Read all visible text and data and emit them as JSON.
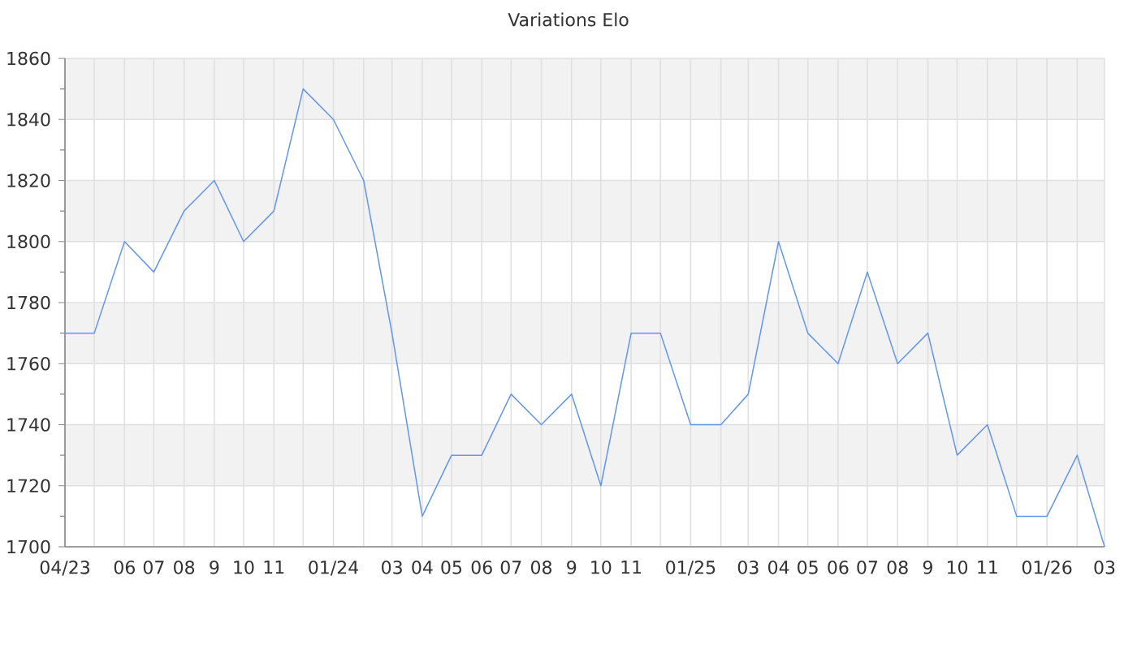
{
  "chart_data": {
    "type": "line",
    "title": "Variations Elo",
    "x": [
      "2023-04",
      "2023-05",
      "2023-06",
      "2023-07",
      "2023-08",
      "2023-09",
      "2023-10",
      "2023-11",
      "2023-12",
      "2024-01",
      "2024-02",
      "2024-03",
      "2024-04",
      "2024-05",
      "2024-06",
      "2024-07",
      "2024-08",
      "2024-09",
      "2024-10",
      "2024-11",
      "2024-12",
      "2025-01",
      "2025-02",
      "2025-03",
      "2025-04",
      "2025-05",
      "2025-06",
      "2025-07",
      "2025-08",
      "2025-09",
      "2025-10",
      "2025-11",
      "2025-12",
      "2026-01",
      "2026-02",
      "2026-03"
    ],
    "values": [
      1770,
      1770,
      1800,
      1790,
      1810,
      1820,
      1800,
      1810,
      1850,
      1840,
      1820,
      1770,
      1710,
      1730,
      1730,
      1750,
      1740,
      1750,
      1720,
      1770,
      1770,
      1740,
      1740,
      1750,
      1800,
      1770,
      1760,
      1790,
      1760,
      1770,
      1730,
      1740,
      1710,
      1710,
      1730,
      1700
    ],
    "color": "#6495ed",
    "xlim": [
      "2023-04",
      "2026-03"
    ],
    "xticks": [
      {
        "value": "2023-04",
        "label": "04/23"
      },
      {
        "value": "2023-05",
        "label": null
      },
      {
        "value": "2023-06",
        "label": "06"
      },
      {
        "value": "2023-07",
        "label": "07"
      },
      {
        "value": "2023-08",
        "label": "08"
      },
      {
        "value": "2023-09",
        "label": "9"
      },
      {
        "value": "2023-10",
        "label": "10"
      },
      {
        "value": "2023-11",
        "label": "11"
      },
      {
        "value": "2023-12",
        "label": null
      },
      {
        "value": "2024-01",
        "label": "01/24"
      },
      {
        "value": "2024-02",
        "label": null
      },
      {
        "value": "2024-03",
        "label": "03"
      },
      {
        "value": "2024-04",
        "label": "04"
      },
      {
        "value": "2024-05",
        "label": "05"
      },
      {
        "value": "2024-06",
        "label": "06"
      },
      {
        "value": "2024-07",
        "label": "07"
      },
      {
        "value": "2024-08",
        "label": "08"
      },
      {
        "value": "2024-09",
        "label": "9"
      },
      {
        "value": "2024-10",
        "label": "10"
      },
      {
        "value": "2024-11",
        "label": "11"
      },
      {
        "value": "2024-12",
        "label": null
      },
      {
        "value": "2025-01",
        "label": "01/25"
      },
      {
        "value": "2025-02",
        "label": null
      },
      {
        "value": "2025-03",
        "label": "03"
      },
      {
        "value": "2025-04",
        "label": "04"
      },
      {
        "value": "2025-05",
        "label": "05"
      },
      {
        "value": "2025-06",
        "label": "06"
      },
      {
        "value": "2025-07",
        "label": "07"
      },
      {
        "value": "2025-08",
        "label": "08"
      },
      {
        "value": "2025-09",
        "label": "9"
      },
      {
        "value": "2025-10",
        "label": "10"
      },
      {
        "value": "2025-11",
        "label": "11"
      },
      {
        "value": "2025-12",
        "label": null
      },
      {
        "value": "2026-01",
        "label": "01/26"
      },
      {
        "value": "2026-02",
        "label": null
      },
      {
        "value": "2026-03",
        "label": "03"
      }
    ],
    "ylim": [
      1700,
      1860
    ],
    "yticks": [
      1700,
      1720,
      1740,
      1760,
      1780,
      1800,
      1820,
      1840,
      1860
    ],
    "grid": true,
    "bands": [
      {
        "axis": "y",
        "from": 1720,
        "to": 1740,
        "color": "#f2f2f2"
      },
      {
        "axis": "y",
        "from": 1760,
        "to": 1780,
        "color": "#f2f2f2"
      },
      {
        "axis": "y",
        "from": 1800,
        "to": 1820,
        "color": "#f2f2f2"
      },
      {
        "axis": "y",
        "from": 1840,
        "to": 1860,
        "color": "#f2f2f2"
      }
    ]
  }
}
